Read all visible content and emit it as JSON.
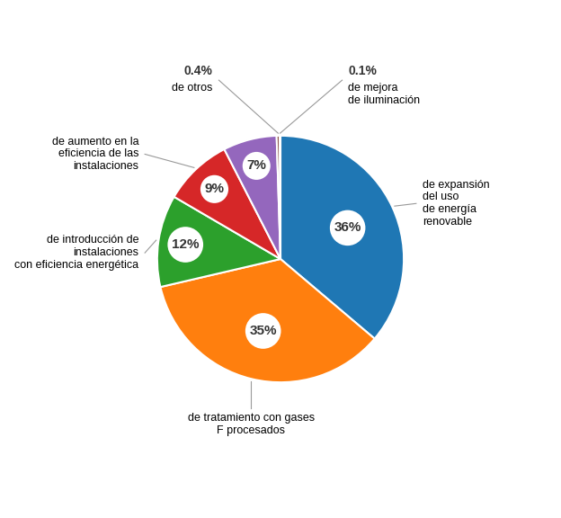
{
  "chart_data": {
    "type": "pie",
    "categories": [
      "de expansión\ndel uso\nde energía\nrenovable",
      "de tratamiento con gases\nF procesados",
      "de introducción de\ninstalaciones\ncon eficiencia energética",
      "de aumento en la\neficiencia de las\ninstalaciones",
      null,
      "de otros",
      "de mejora\nde iluminación"
    ],
    "values": [
      36,
      35,
      12,
      9,
      7,
      0.4,
      0.1
    ],
    "value_labels": [
      "36%",
      "35%",
      "12%",
      "9%",
      "7%",
      "0.4%",
      "0.1%"
    ]
  }
}
